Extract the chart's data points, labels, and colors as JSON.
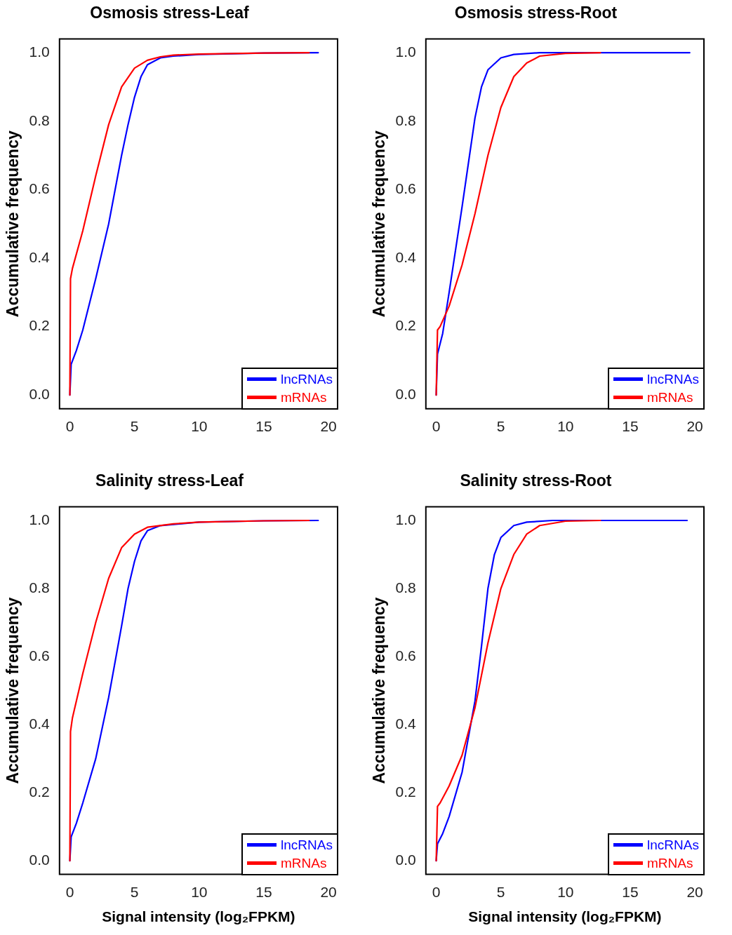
{
  "chart_data": [
    {
      "type": "line",
      "title": "Osmosis stress-Leaf",
      "ylabel": "Accumulative frequency",
      "xlim": [
        -0.8,
        20.7
      ],
      "ylim": [
        -0.04,
        1.04
      ],
      "xticks": [
        0,
        5,
        10,
        15,
        20
      ],
      "yticks": [
        {
          "value": 0,
          "label": "0.0"
        },
        {
          "value": 0.2,
          "label": "0.2"
        },
        {
          "value": 0.4,
          "label": "0.4"
        },
        {
          "value": 0.6,
          "label": "0.6"
        },
        {
          "value": 0.8,
          "label": "0.8"
        },
        {
          "value": 1,
          "label": "1.0"
        }
      ],
      "grid": false,
      "legend": "bottom right",
      "marker": "none",
      "line_style": "solid",
      "series": [
        {
          "name": "lncRNAs",
          "color": "#0000ff",
          "x": [
            0,
            0.1,
            0.5,
            1,
            2,
            3,
            4,
            4.5,
            5,
            5.5,
            6,
            7,
            8,
            10,
            15,
            19.2
          ],
          "values": [
            0,
            0.09,
            0.13,
            0.19,
            0.34,
            0.5,
            0.7,
            0.79,
            0.87,
            0.93,
            0.965,
            0.985,
            0.99,
            0.995,
            0.999,
            1
          ]
        },
        {
          "name": "mRNAs",
          "color": "#ff0000",
          "x": [
            0,
            0.05,
            0.2,
            1,
            2,
            3,
            4,
            5,
            6,
            7,
            8,
            10,
            15,
            18.5
          ],
          "values": [
            0,
            0.34,
            0.37,
            0.48,
            0.64,
            0.79,
            0.9,
            0.955,
            0.978,
            0.988,
            0.993,
            0.996,
            0.999,
            1
          ]
        }
      ]
    },
    {
      "type": "line",
      "title": "Osmosis stress-Root",
      "ylabel": "Accumulative frequency",
      "xlim": [
        -0.8,
        20.7
      ],
      "ylim": [
        -0.04,
        1.04
      ],
      "xticks": [
        0,
        5,
        10,
        15,
        20
      ],
      "yticks": [
        {
          "value": 0,
          "label": "0.0"
        },
        {
          "value": 0.2,
          "label": "0.2"
        },
        {
          "value": 0.4,
          "label": "0.4"
        },
        {
          "value": 0.6,
          "label": "0.6"
        },
        {
          "value": 0.8,
          "label": "0.8"
        },
        {
          "value": 1,
          "label": "1.0"
        }
      ],
      "grid": false,
      "legend": "bottom right",
      "marker": "none",
      "line_style": "solid",
      "series": [
        {
          "name": "lncRNAs",
          "color": "#0000ff",
          "x": [
            0,
            0.1,
            0.5,
            1,
            2,
            3,
            3.5,
            4,
            5,
            6,
            8,
            19.6
          ],
          "values": [
            0,
            0.12,
            0.18,
            0.3,
            0.55,
            0.81,
            0.9,
            0.95,
            0.985,
            0.995,
            1,
            1
          ]
        },
        {
          "name": "mRNAs",
          "color": "#ff0000",
          "x": [
            0,
            0.1,
            0.3,
            1,
            2,
            3,
            4,
            5,
            6,
            7,
            8,
            10,
            12.7
          ],
          "values": [
            0,
            0.19,
            0.2,
            0.26,
            0.38,
            0.53,
            0.7,
            0.84,
            0.93,
            0.97,
            0.99,
            0.998,
            1
          ]
        }
      ]
    },
    {
      "type": "line",
      "title": "Salinity stress-Leaf",
      "xlabel": "Signal intensity (log₂FPKM)",
      "ylabel": "Accumulative frequency",
      "xlim": [
        -0.8,
        20.7
      ],
      "ylim": [
        -0.04,
        1.04
      ],
      "xticks": [
        0,
        5,
        10,
        15,
        20
      ],
      "yticks": [
        {
          "value": 0,
          "label": "0.0"
        },
        {
          "value": 0.2,
          "label": "0.2"
        },
        {
          "value": 0.4,
          "label": "0.4"
        },
        {
          "value": 0.6,
          "label": "0.6"
        },
        {
          "value": 0.8,
          "label": "0.8"
        },
        {
          "value": 1,
          "label": "1.0"
        }
      ],
      "grid": false,
      "legend": "bottom right",
      "marker": "none",
      "line_style": "solid",
      "series": [
        {
          "name": "lncRNAs",
          "color": "#0000ff",
          "x": [
            0,
            0.1,
            0.5,
            1,
            2,
            3,
            4,
            4.5,
            5,
            5.5,
            6,
            7,
            10,
            15,
            19.2
          ],
          "values": [
            0,
            0.07,
            0.11,
            0.17,
            0.3,
            0.48,
            0.69,
            0.8,
            0.88,
            0.94,
            0.97,
            0.985,
            0.995,
            0.999,
            1
          ]
        },
        {
          "name": "mRNAs",
          "color": "#ff0000",
          "x": [
            0,
            0.05,
            0.2,
            1,
            2,
            3,
            4,
            5,
            6,
            8,
            10,
            15,
            18.5
          ],
          "values": [
            0,
            0.38,
            0.42,
            0.55,
            0.7,
            0.83,
            0.92,
            0.96,
            0.98,
            0.99,
            0.995,
            0.999,
            1
          ]
        }
      ]
    },
    {
      "type": "line",
      "title": "Salinity stress-Root",
      "xlabel": "Signal intensity (log₂FPKM)",
      "ylabel": "Accumulative frequency",
      "xlim": [
        -0.8,
        20.7
      ],
      "ylim": [
        -0.04,
        1.04
      ],
      "xticks": [
        0,
        5,
        10,
        15,
        20
      ],
      "yticks": [
        {
          "value": 0,
          "label": "0.0"
        },
        {
          "value": 0.2,
          "label": "0.2"
        },
        {
          "value": 0.4,
          "label": "0.4"
        },
        {
          "value": 0.6,
          "label": "0.6"
        },
        {
          "value": 0.8,
          "label": "0.8"
        },
        {
          "value": 1,
          "label": "1.0"
        }
      ],
      "grid": false,
      "legend": "bottom right",
      "marker": "none",
      "line_style": "solid",
      "series": [
        {
          "name": "lncRNAs",
          "color": "#0000ff",
          "x": [
            0,
            0.1,
            0.5,
            1,
            2,
            3,
            3.5,
            4,
            4.5,
            5,
            6,
            7,
            9,
            19.4
          ],
          "values": [
            0,
            0.05,
            0.08,
            0.13,
            0.26,
            0.47,
            0.63,
            0.8,
            0.9,
            0.95,
            0.985,
            0.995,
            1,
            1
          ]
        },
        {
          "name": "mRNAs",
          "color": "#ff0000",
          "x": [
            0,
            0.1,
            0.3,
            1,
            2,
            3,
            4,
            5,
            6,
            7,
            8,
            10,
            12.7
          ],
          "values": [
            0,
            0.16,
            0.17,
            0.22,
            0.31,
            0.45,
            0.64,
            0.8,
            0.9,
            0.96,
            0.985,
            0.998,
            1
          ]
        }
      ]
    }
  ]
}
